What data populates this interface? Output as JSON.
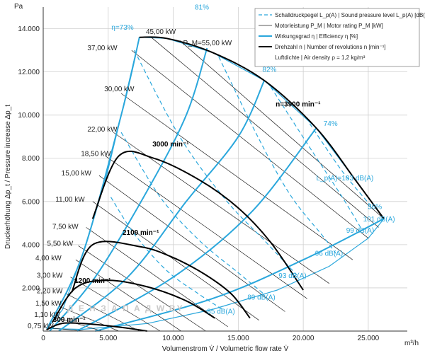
{
  "chart_data": {
    "type": "line",
    "units": {
      "y": "Pa",
      "x": "m³/h"
    },
    "xlabel": "Volumenstrom V̇ / Volumetric flow rate V̇",
    "ylabel": "Druckerhöhung Δp_t / Pressure increase Δp_t",
    "xlim": [
      0,
      28000
    ],
    "ylim": [
      0,
      15000
    ],
    "x_ticks": [
      {
        "value": 0,
        "label": "0"
      },
      {
        "value": 5000,
        "label": "5.000"
      },
      {
        "value": 10000,
        "label": "10.000"
      },
      {
        "value": 15000,
        "label": "15.000"
      },
      {
        "value": 20000,
        "label": "20.000"
      },
      {
        "value": 25000,
        "label": "25.000"
      }
    ],
    "y_ticks": [
      {
        "value": 2000,
        "label": "2.000"
      },
      {
        "value": 4000,
        "label": "4.000"
      },
      {
        "value": 6000,
        "label": "6.000"
      },
      {
        "value": 8000,
        "label": "8.000"
      },
      {
        "value": 10000,
        "label": "10.000"
      },
      {
        "value": 12000,
        "label": "12.000"
      },
      {
        "value": 14000,
        "label": "14.000"
      }
    ],
    "grid": true,
    "legend": {
      "placement": "top-right",
      "entries": [
        {
          "style": "dashed-blue",
          "text": "Schalldruckpegel L_p(A) | Sound pressure level L_p(A) [dB(A)]"
        },
        {
          "style": "thin-black",
          "text": "Motorleistung P_M | Motor rating P_M [kW]"
        },
        {
          "style": "thick-blue",
          "text": "Wirkungsgrad η | Efficiency η [%]"
        },
        {
          "style": "thick-black",
          "text": "Drehzahl n | Number of revolutions n [min⁻¹]"
        },
        {
          "style": "none",
          "text": "Luftdichte | Air density ρ = 1,2 kg/m³"
        }
      ]
    },
    "envelope": [
      [
        300,
        120
      ],
      [
        1500,
        1000
      ],
      [
        3000,
        3500
      ],
      [
        4800,
        7000
      ],
      [
        6000,
        10000
      ],
      [
        7400,
        13600
      ],
      [
        9500,
        13550
      ],
      [
        13000,
        12900
      ],
      [
        17000,
        11600
      ],
      [
        21000,
        9400
      ],
      [
        24000,
        7000
      ],
      [
        26200,
        5200
      ],
      [
        25000,
        4300
      ],
      [
        22000,
        3000
      ],
      [
        18000,
        1900
      ],
      [
        13000,
        1000
      ],
      [
        8000,
        350
      ],
      [
        3000,
        80
      ],
      [
        300,
        120
      ]
    ],
    "rpm_curves": [
      {
        "label": "300 min⁻¹",
        "label_xy": [
          2000,
          420
        ],
        "points": [
          [
            250,
            60
          ],
          [
            1500,
            360
          ],
          [
            3500,
            330
          ],
          [
            6000,
            170
          ],
          [
            8000,
            0
          ]
        ]
      },
      {
        "label": "1200 min⁻¹",
        "label_xy": [
          3800,
          2220
        ],
        "points": [
          [
            700,
            400
          ],
          [
            2500,
            2000
          ],
          [
            5000,
            2350
          ],
          [
            8000,
            2050
          ],
          [
            11000,
            1400
          ],
          [
            13200,
            600
          ]
        ]
      },
      {
        "label": "2100 min⁻¹",
        "label_xy": [
          7500,
          4450
        ],
        "points": [
          [
            2200,
            1800
          ],
          [
            3800,
            4000
          ],
          [
            7500,
            3900
          ],
          [
            10000,
            3400
          ],
          [
            12500,
            2600
          ],
          [
            14500,
            1700
          ],
          [
            15900,
            600
          ]
        ]
      },
      {
        "label": "3000 min⁻¹",
        "label_xy": [
          9800,
          8550
        ],
        "points": [
          [
            3800,
            5200
          ],
          [
            5800,
            8100
          ],
          [
            8500,
            8000
          ],
          [
            12000,
            7000
          ],
          [
            15000,
            5700
          ],
          [
            17500,
            4100
          ],
          [
            20000,
            1900
          ]
        ]
      },
      {
        "label": "n=3900 min⁻¹",
        "label_xy": [
          19600,
          10400
        ],
        "points": [
          [
            7400,
            13600
          ],
          [
            9500,
            13550
          ],
          [
            13000,
            12900
          ],
          [
            17000,
            11600
          ],
          [
            21000,
            9400
          ],
          [
            24000,
            7000
          ],
          [
            26200,
            5200
          ]
        ]
      }
    ],
    "motor_ratings": [
      {
        "label": "0,75 kW",
        "value": 0.75
      },
      {
        "label": "1,10 kW",
        "value": 1.1
      },
      {
        "label": "1,50 kW",
        "value": 1.5
      },
      {
        "label": "2,20 kW",
        "value": 2.2
      },
      {
        "label": "3,00 kW",
        "value": 3.0
      },
      {
        "label": "4,00 kW",
        "value": 4.0
      },
      {
        "label": "5,50 kW",
        "value": 5.5
      },
      {
        "label": "7,50 kW",
        "value": 7.5
      },
      {
        "label": "11,00 kW",
        "value": 11.0
      },
      {
        "label": "15,00 kW",
        "value": 15.0
      },
      {
        "label": "18,50 kW",
        "value": 18.5
      },
      {
        "label": "22,00 kW",
        "value": 22.0
      },
      {
        "label": "30,00 kW",
        "value": 30.0
      },
      {
        "label": "37,00 kW",
        "value": 37.0
      },
      {
        "label": "45,00 kW",
        "value": 45.0
      },
      {
        "label": "P_M=55,00 kW",
        "value": 55.0
      }
    ],
    "motor_label_xy": [
      [
        800,
        130
      ],
      [
        1300,
        660
      ],
      [
        1400,
        1180
      ],
      [
        1500,
        1750
      ],
      [
        1500,
        2480
      ],
      [
        1400,
        3270
      ],
      [
        2300,
        3950
      ],
      [
        2700,
        4740
      ],
      [
        3200,
        5990
      ],
      [
        3700,
        7200
      ],
      [
        5200,
        8100
      ],
      [
        5700,
        9240
      ],
      [
        7000,
        11100
      ],
      [
        5700,
        13000
      ],
      [
        10200,
        13750
      ],
      [
        14500,
        13230
      ]
    ],
    "motor_lines": [
      [
        [
          300,
          150
        ],
        [
          3200,
          0
        ]
      ],
      [
        [
          900,
          650
        ],
        [
          4500,
          0
        ]
      ],
      [
        [
          1200,
          1150
        ],
        [
          5800,
          0
        ]
      ],
      [
        [
          1700,
          1750
        ],
        [
          7400,
          0
        ]
      ],
      [
        [
          2100,
          2500
        ],
        [
          9000,
          0
        ]
      ],
      [
        [
          2500,
          3300
        ],
        [
          10600,
          0
        ]
      ],
      [
        [
          2700,
          3950
        ],
        [
          12500,
          0
        ]
      ],
      [
        [
          3300,
          4800
        ],
        [
          14200,
          200
        ]
      ],
      [
        [
          3800,
          6000
        ],
        [
          16600,
          500
        ]
      ],
      [
        [
          4300,
          7200
        ],
        [
          18600,
          900
        ]
      ],
      [
        [
          4800,
          8100
        ],
        [
          20300,
          1500
        ]
      ],
      [
        [
          5400,
          9200
        ],
        [
          22000,
          2200
        ]
      ],
      [
        [
          6000,
          11000
        ],
        [
          23800,
          3300
        ]
      ],
      [
        [
          6800,
          13000
        ],
        [
          25000,
          4300
        ]
      ],
      [
        [
          8300,
          13600
        ],
        [
          25800,
          4800
        ]
      ],
      [
        [
          10500,
          13450
        ],
        [
          26200,
          5200
        ]
      ]
    ],
    "efficiency_lines": [
      {
        "label": "η=73%",
        "label_xy": [
          6100,
          13950
        ],
        "points": [
          [
            300,
            120
          ],
          [
            3000,
            3500
          ],
          [
            6000,
            10000
          ],
          [
            7400,
            13600
          ]
        ]
      },
      {
        "label": "81%",
        "label_xy": [
          12200,
          14880
        ],
        "points": [
          [
            500,
            0
          ],
          [
            4000,
            2500
          ],
          [
            8000,
            6500
          ],
          [
            11000,
            10000
          ],
          [
            12600,
            13100
          ]
        ]
      },
      {
        "label": "82%",
        "label_xy": [
          17400,
          12000
        ],
        "points": [
          [
            1200,
            0
          ],
          [
            6500,
            2500
          ],
          [
            11000,
            6000
          ],
          [
            15000,
            9000
          ],
          [
            17000,
            11600
          ]
        ]
      },
      {
        "label": "74%",
        "label_xy": [
          22100,
          9500
        ],
        "points": [
          [
            2600,
            0
          ],
          [
            10000,
            2500
          ],
          [
            16000,
            5500
          ],
          [
            21000,
            9400
          ]
        ]
      },
      {
        "label": "56%",
        "label_xy": [
          25500,
          5650
        ],
        "points": [
          [
            4000,
            0
          ],
          [
            13000,
            1500
          ],
          [
            20000,
            3300
          ],
          [
            26200,
            5200
          ]
        ]
      }
    ],
    "spl_lines": [
      {
        "label": "85 dB(A)",
        "label_xy": [
          12600,
          810
        ],
        "points": [
          [
            5200,
            6200
          ],
          [
            7000,
            4500
          ],
          [
            9500,
            2800
          ],
          [
            12000,
            1700
          ],
          [
            13800,
            1000
          ]
        ]
      },
      {
        "label": "89 dB(A)",
        "label_xy": [
          15700,
          1450
        ],
        "points": [
          [
            6000,
            9200
          ],
          [
            9000,
            6200
          ],
          [
            12000,
            4200
          ],
          [
            15000,
            2700
          ],
          [
            17000,
            1700
          ]
        ]
      },
      {
        "label": "93 dB(A)",
        "label_xy": [
          18100,
          2460
        ],
        "points": [
          [
            7000,
            13000
          ],
          [
            10500,
            9000
          ],
          [
            14000,
            6100
          ],
          [
            17000,
            4200
          ],
          [
            19500,
            2600
          ]
        ]
      },
      {
        "label": "96 dB(A)",
        "label_xy": [
          20900,
          3480
        ],
        "points": [
          [
            13500,
            12700
          ],
          [
            16500,
            9000
          ],
          [
            19000,
            6300
          ],
          [
            21500,
            4400
          ],
          [
            22500,
            3600
          ]
        ]
      },
      {
        "label": "99 dB(A)",
        "label_xy": [
          23300,
          4560
        ],
        "points": [
          [
            17500,
            11300
          ],
          [
            20500,
            8500
          ],
          [
            23000,
            6200
          ],
          [
            24500,
            4700
          ]
        ]
      },
      {
        "label": "101 dB(A)",
        "label_xy": [
          24600,
          5080
        ],
        "points": [
          [
            20500,
            9600
          ],
          [
            23000,
            7400
          ],
          [
            25200,
            5800
          ]
        ]
      },
      {
        "label": "L_p(A)=103 dB(A)",
        "label_xy": [
          21000,
          6980
        ],
        "points": []
      }
    ],
    "watermark": "Д Е Н  З А П А Д   W.BY"
  }
}
